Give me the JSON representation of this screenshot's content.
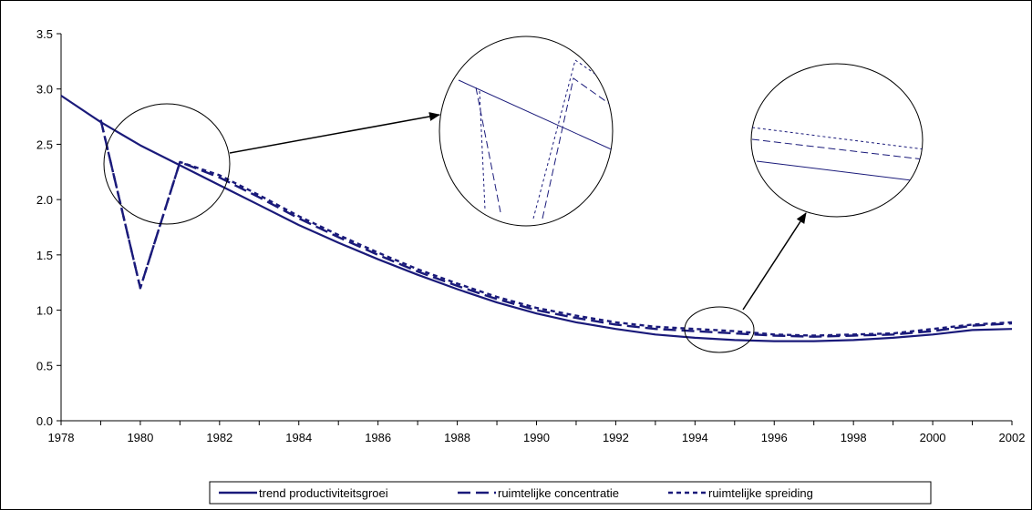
{
  "chart_data": {
    "type": "line",
    "title": "",
    "xlabel": "",
    "ylabel": "",
    "x": [
      1978,
      1979,
      1980,
      1981,
      1982,
      1983,
      1984,
      1985,
      1986,
      1987,
      1988,
      1989,
      1990,
      1991,
      1992,
      1993,
      1994,
      1995,
      1996,
      1997,
      1998,
      1999,
      2000,
      2001,
      2002
    ],
    "xlim": [
      1978,
      2002
    ],
    "x_ticks": [
      "1978",
      "1980",
      "1982",
      "1984",
      "1986",
      "1988",
      "1990",
      "1992",
      "1994",
      "1996",
      "1998",
      "2000",
      "2002"
    ],
    "ylim": [
      0,
      3.5
    ],
    "y_ticks": [
      "0.0",
      "0.5",
      "1.0",
      "1.5",
      "2.0",
      "2.5",
      "3.0",
      "3.5"
    ],
    "grid": false,
    "legend_position": "bottom",
    "series": [
      {
        "name": "trend productiviteitsgroei",
        "style": "solid",
        "values": [
          2.94,
          2.7,
          2.49,
          2.31,
          2.13,
          1.95,
          1.77,
          1.61,
          1.46,
          1.32,
          1.19,
          1.07,
          0.97,
          0.89,
          0.83,
          0.78,
          0.75,
          0.73,
          0.72,
          0.72,
          0.73,
          0.75,
          0.78,
          0.82,
          0.83
        ]
      },
      {
        "name": "ruimtelijke concentratie",
        "style": "dashed",
        "values": [
          null,
          2.72,
          1.2,
          2.34,
          2.2,
          2.02,
          1.83,
          1.66,
          1.5,
          1.35,
          1.22,
          1.1,
          1.0,
          0.93,
          0.87,
          0.83,
          0.81,
          0.79,
          0.77,
          0.76,
          0.77,
          0.78,
          0.81,
          0.86,
          0.88
        ]
      },
      {
        "name": "ruimtelijke spreiding",
        "style": "dotted",
        "values": [
          null,
          2.72,
          1.2,
          2.34,
          2.22,
          2.04,
          1.85,
          1.68,
          1.52,
          1.37,
          1.24,
          1.12,
          1.02,
          0.95,
          0.89,
          0.85,
          0.83,
          0.81,
          0.78,
          0.77,
          0.78,
          0.79,
          0.83,
          0.87,
          0.89
        ]
      }
    ],
    "annotations": [
      {
        "kind": "zoom-inset",
        "region": "1979-1981",
        "inset": "upper-middle"
      },
      {
        "kind": "zoom-inset",
        "region": "1994-1995",
        "inset": "upper-right"
      }
    ]
  },
  "colors": {
    "line": "#1a1a7a",
    "axis": "#000000"
  }
}
